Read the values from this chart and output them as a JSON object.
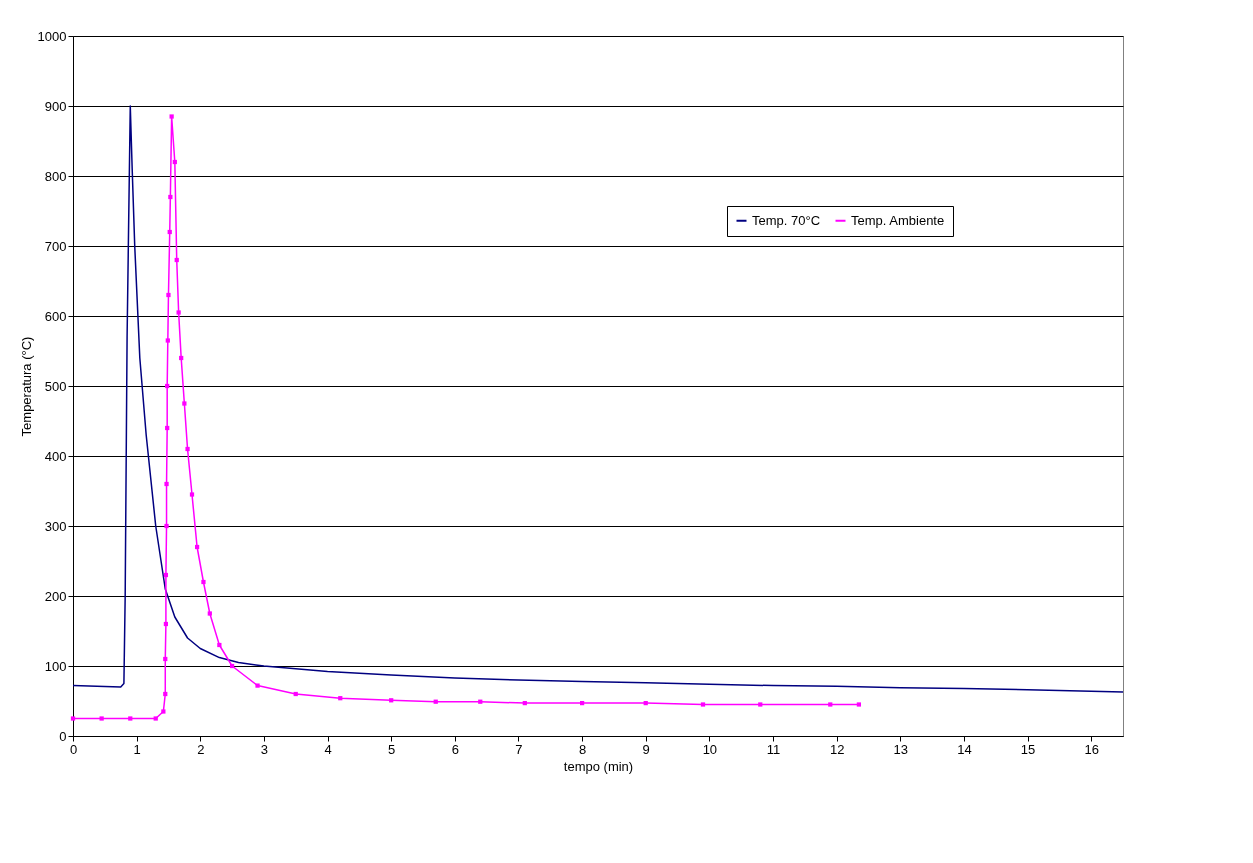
{
  "chart_data": {
    "type": "line",
    "xlabel": "tempo (min)",
    "ylabel": "Temperatura (°C)",
    "xlim": [
      0,
      16.5
    ],
    "xticks": [
      0,
      1,
      2,
      3,
      4,
      5,
      6,
      7,
      8,
      9,
      10,
      11,
      12,
      13,
      14,
      15,
      16
    ],
    "ylim": [
      0,
      1000
    ],
    "yticks": [
      0,
      100,
      200,
      300,
      400,
      500,
      600,
      700,
      800,
      900,
      1000
    ],
    "grid": "y",
    "legend": "top right",
    "series": [
      {
        "name": "Temp. 70°C",
        "color": "#000080",
        "marker": "none",
        "x": [
          0,
          0.75,
          0.8,
          0.82,
          0.85,
          0.9,
          0.93,
          0.97,
          1.05,
          1.15,
          1.3,
          1.45,
          1.6,
          1.8,
          2.0,
          2.3,
          2.6,
          3.0,
          4,
          5,
          6,
          7,
          8,
          9,
          10,
          11,
          12,
          13,
          14,
          15,
          16.5
        ],
        "values": [
          72,
          70,
          75,
          200,
          570,
          900,
          810,
          700,
          540,
          430,
          300,
          210,
          170,
          140,
          125,
          112,
          105,
          100,
          92,
          87,
          83,
          80,
          78,
          76,
          74,
          72,
          71,
          69,
          68,
          66,
          63
        ]
      },
      {
        "name": "Temp. Ambiente",
        "color": "#ff00ff",
        "marker": "square",
        "x": [
          0,
          0.45,
          0.9,
          1.3,
          1.42,
          1.45,
          1.45,
          1.46,
          1.46,
          1.47,
          1.47,
          1.48,
          1.48,
          1.49,
          1.5,
          1.52,
          1.53,
          1.55,
          1.6,
          1.63,
          1.66,
          1.7,
          1.75,
          1.8,
          1.87,
          1.95,
          2.05,
          2.15,
          2.3,
          2.5,
          2.9,
          3.5,
          4.2,
          5,
          5.7,
          6.4,
          7.1,
          8.0,
          9.0,
          9.9,
          10.8,
          11.9,
          12.35
        ],
        "values": [
          25,
          25,
          25,
          25,
          35,
          60,
          110,
          160,
          230,
          300,
          360,
          440,
          500,
          565,
          630,
          720,
          770,
          885,
          820,
          680,
          605,
          540,
          475,
          410,
          345,
          270,
          220,
          175,
          130,
          100,
          72,
          60,
          54,
          51,
          49,
          49,
          47,
          47,
          47,
          45,
          45,
          45,
          45
        ]
      }
    ]
  }
}
